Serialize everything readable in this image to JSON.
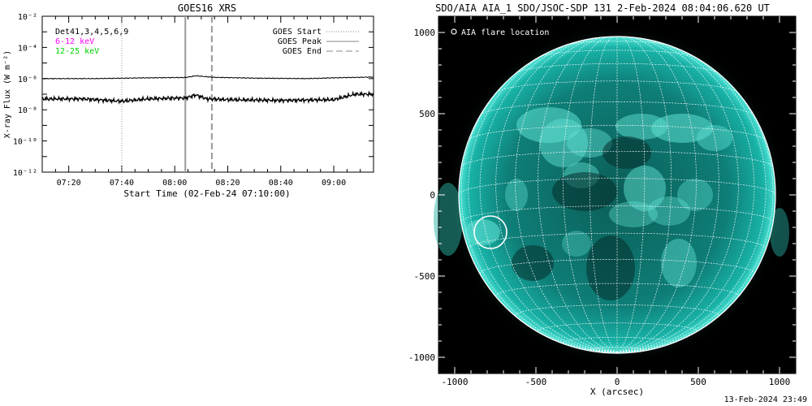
{
  "footer": {
    "timestamp": "13-Feb-2024 23:49"
  },
  "goes": {
    "title": "GOES16 XRS",
    "ylabel": "X-ray Flux (W m⁻²)",
    "xlabel": "Start Time (02-Feb-24 07:10:00)",
    "legend_detectors": "Det41,3,4,5,6,9",
    "legend_low": "6-12 keV",
    "legend_high": "12-25 keV",
    "legend_start": "GOES Start",
    "legend_peak": "GOES Peak",
    "legend_end": "GOES End"
  },
  "aia": {
    "title": "SDO/AIA AIA_1 SDO/JSOC-SDP 131  2-Feb-2024 08:04:06.620 UT",
    "legend_marker": "AIA flare location",
    "xlabel": "X (arcsec)"
  },
  "colors": {
    "low_band": "#ff00ff",
    "high_band": "#00d000",
    "sun": "#0e8f86",
    "sky": "#000000",
    "grid": "#ffffff"
  },
  "chart_data": [
    {
      "type": "line",
      "title": "GOES16 XRS",
      "xlabel": "Start Time (02-Feb-24 07:10:00)",
      "ylabel": "X-ray Flux (W m⁻²)",
      "yscale": "log",
      "x_ticks": [
        "07:20",
        "07:40",
        "08:00",
        "08:20",
        "08:40",
        "09:00"
      ],
      "y_ticks": [
        "10⁻¹²",
        "10⁻¹⁰",
        "10⁻⁸",
        "10⁻⁶",
        "10⁻⁴",
        "10⁻²"
      ],
      "x_range_minutes_after_start": [
        0,
        125
      ],
      "y_exponent_range": [
        -12,
        -2
      ],
      "vertical_markers": {
        "goes_start_minutes": 30,
        "goes_peak_minutes": 54,
        "goes_end_minutes": 64
      },
      "series": [
        {
          "name": "low",
          "x_minutes": [
            0,
            20,
            40,
            54,
            58,
            65,
            80,
            100,
            110,
            125
          ],
          "y_exponent": [
            -6.0,
            -6.0,
            -5.95,
            -5.93,
            -5.82,
            -5.92,
            -5.97,
            -6.0,
            -5.95,
            -5.9
          ],
          "color": "#000000"
        },
        {
          "name": "high",
          "x_minutes": [
            0,
            15,
            30,
            40,
            50,
            54,
            58,
            62,
            70,
            90,
            110,
            118,
            125
          ],
          "y_exponent": [
            -7.3,
            -7.3,
            -7.45,
            -7.3,
            -7.25,
            -7.25,
            -7.05,
            -7.3,
            -7.35,
            -7.4,
            -7.35,
            -7.0,
            -7.0
          ],
          "color": "#000000"
        }
      ],
      "legend_placement": "top-left and top-right"
    },
    {
      "type": "image",
      "title": "SDO/AIA AIA_1 SDO/JSOC-SDP 131  2-Feb-2024 08:04:06.620 UT",
      "xlabel": "X (arcsec)",
      "x_ticks": [
        -1000,
        -500,
        0,
        500,
        1000
      ],
      "y_ticks": [
        1000,
        500,
        0,
        -500,
        -1000
      ],
      "x_range": [
        -1100,
        1100
      ],
      "y_range": [
        -1100,
        1100
      ],
      "solar_radius_arcsec": 975,
      "grid_spacing_deg": 10,
      "flare_location_arcsec": {
        "x": -780,
        "y": -230
      }
    }
  ]
}
